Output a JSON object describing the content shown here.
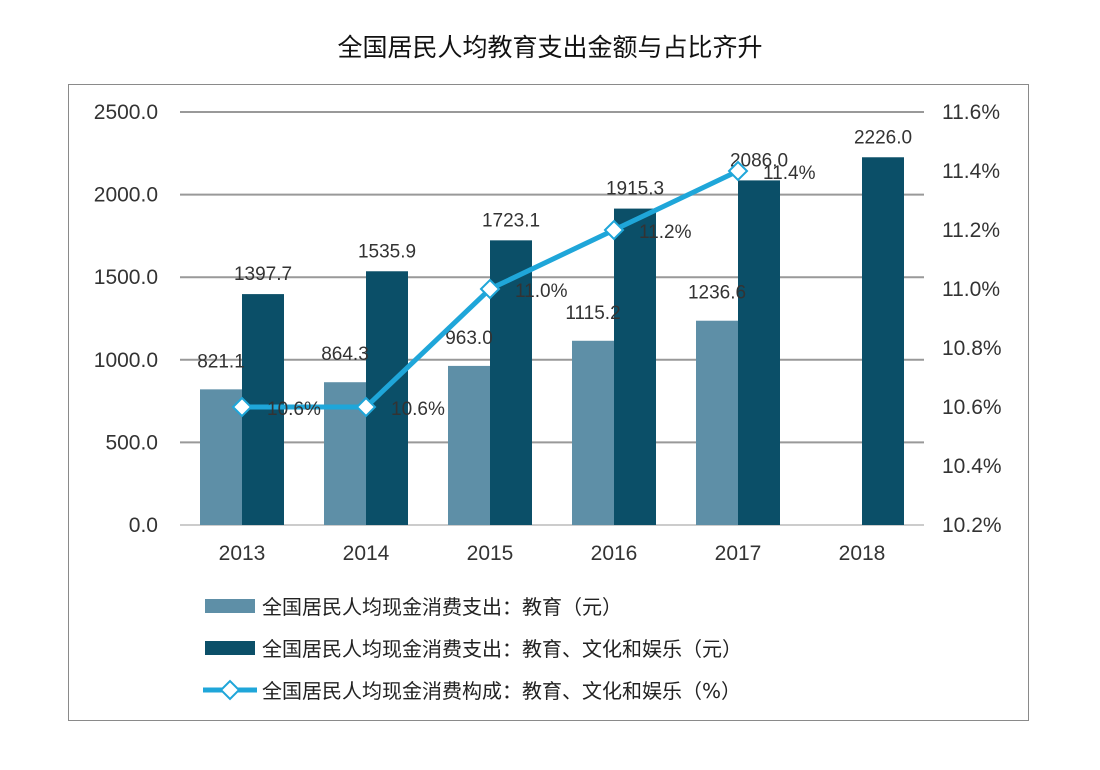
{
  "chart_data": {
    "type": "bar+line",
    "title": "全国居民人均教育支出金额与占比齐升",
    "categories": [
      "2013",
      "2014",
      "2015",
      "2016",
      "2017",
      "2018"
    ],
    "series": [
      {
        "name": "全国居民人均现金消费支出：教育（元）",
        "type": "bar",
        "axis": "left",
        "color": "#5e8fa7",
        "values": [
          821.1,
          864.3,
          963.0,
          1115.2,
          1236.6,
          null
        ],
        "labels": [
          "821.1",
          "864.3",
          "963.0",
          "1115.2",
          "1236.6",
          ""
        ]
      },
      {
        "name": "全国居民人均现金消费支出：教育、文化和娱乐（元）",
        "type": "bar",
        "axis": "left",
        "color": "#0b4f68",
        "values": [
          1397.7,
          1535.9,
          1723.1,
          1915.3,
          2086.0,
          2226.0
        ],
        "labels": [
          "1397.7",
          "1535.9",
          "1723.1",
          "1915.3",
          "2086.0",
          "2226.0"
        ]
      },
      {
        "name": "全国居民人均现金消费构成：教育、文化和娱乐（%）",
        "type": "line",
        "axis": "right",
        "color": "#1fa6d9",
        "values": [
          10.6,
          10.6,
          11.0,
          11.2,
          11.4,
          null
        ],
        "labels": [
          "10.6%",
          "10.6%",
          "11.0%",
          "11.2%",
          "11.4%",
          ""
        ]
      }
    ],
    "y_left": {
      "range": [
        0,
        2500
      ],
      "ticks": [
        "0.0",
        "500.0",
        "1000.0",
        "1500.0",
        "2000.0",
        "2500.0"
      ]
    },
    "y_right": {
      "range": [
        10.2,
        11.6
      ],
      "ticks": [
        "10.2%",
        "10.4%",
        "10.6%",
        "10.8%",
        "11.0%",
        "11.2%",
        "11.4%",
        "11.6%"
      ]
    },
    "grid": true,
    "legend": "bottom"
  }
}
